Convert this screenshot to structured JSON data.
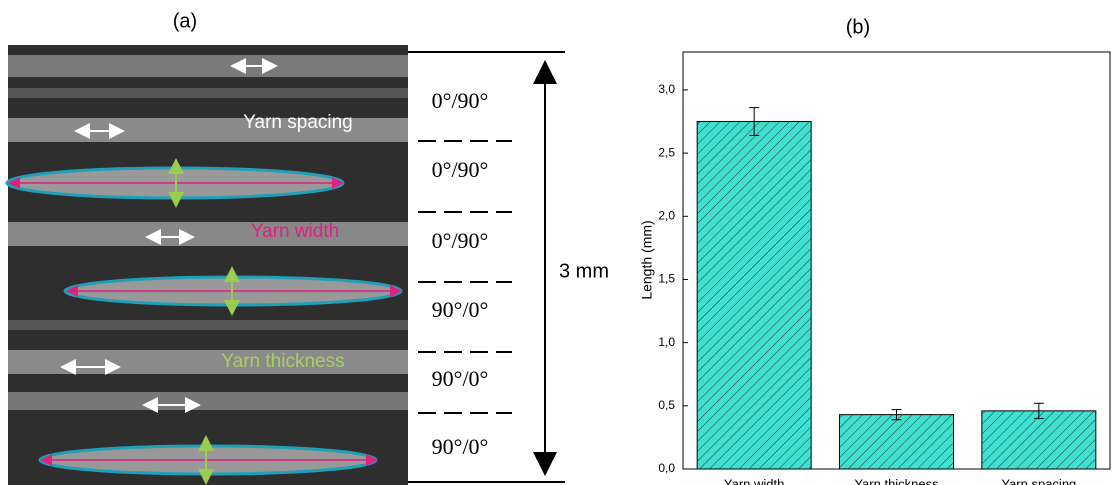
{
  "panel_a": {
    "label": "(a)",
    "annotations": [
      "Yarn spacing",
      "Yarn width",
      "Yarn thickness"
    ],
    "plies": [
      "0°/90°",
      "0°/90°",
      "0°/90°",
      "90°/0°",
      "90°/0°",
      "90°/0°"
    ],
    "scale": "3 mm"
  },
  "chart_data": {
    "type": "bar",
    "panel_label": "(b)",
    "y_label": "Length (mm)",
    "categories": [
      "Yarn width",
      "Yarn thickness",
      "Yarn spacing"
    ],
    "values": [
      2.75,
      0.43,
      0.46
    ],
    "errors": [
      0.11,
      0.04,
      0.06
    ],
    "color": "#40e0d0",
    "ylim": [
      0,
      3.3
    ],
    "yticks": [
      {
        "value": 0,
        "label": "0,0"
      },
      {
        "value": 0.5,
        "label": "0,5"
      },
      {
        "value": 1,
        "label": "1,0"
      },
      {
        "value": 1.5,
        "label": "1,5"
      },
      {
        "value": 2,
        "label": "2,0"
      },
      {
        "value": 2.5,
        "label": "2,5"
      },
      {
        "value": 3,
        "label": "3,0"
      }
    ]
  }
}
